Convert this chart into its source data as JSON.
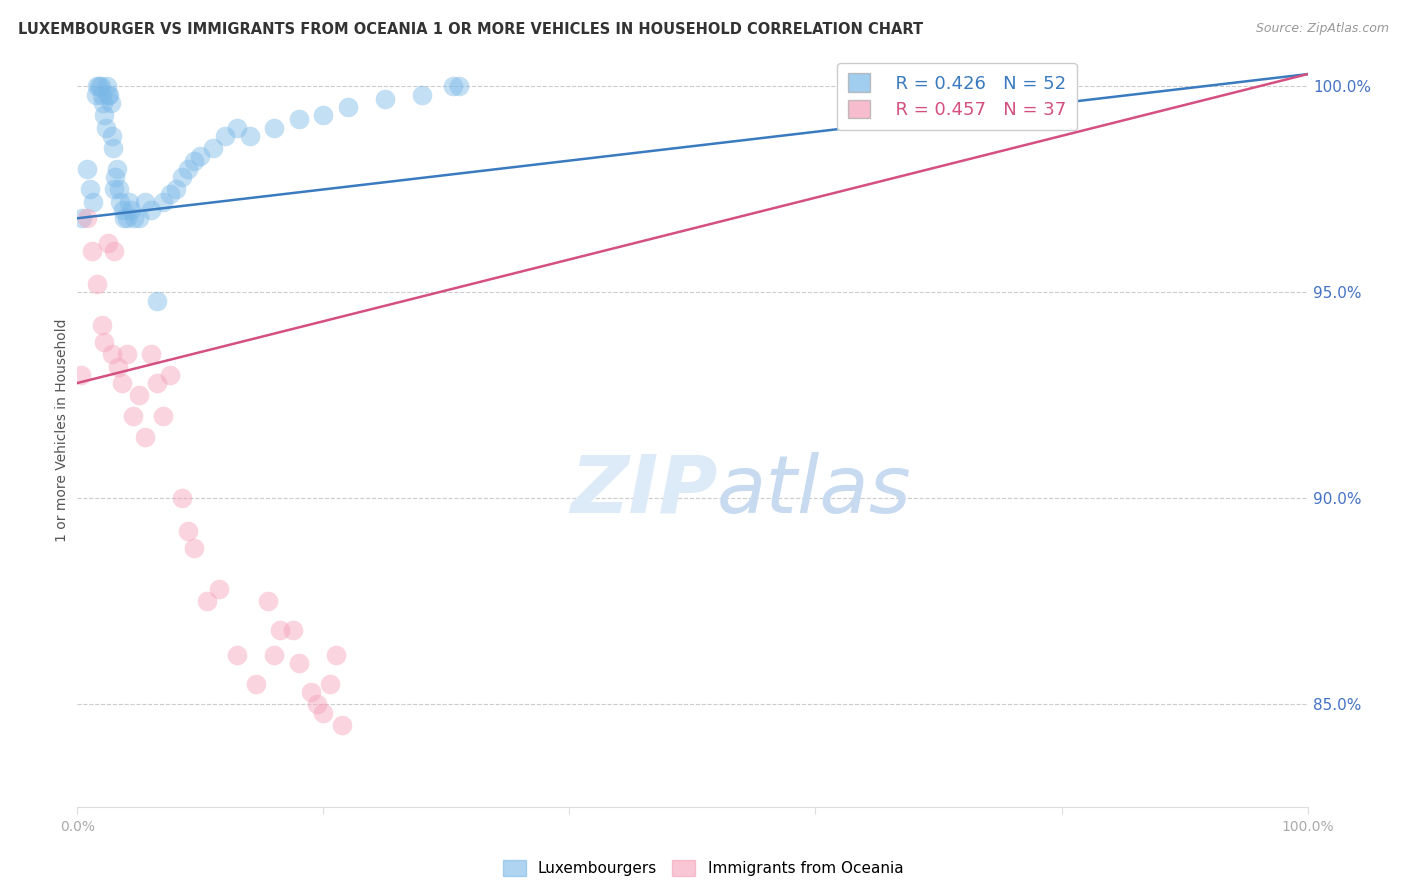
{
  "title": "LUXEMBOURGER VS IMMIGRANTS FROM OCEANIA 1 OR MORE VEHICLES IN HOUSEHOLD CORRELATION CHART",
  "source": "Source: ZipAtlas.com",
  "ylabel": "1 or more Vehicles in Household",
  "legend_blue_r": "R = 0.426",
  "legend_blue_n": "N = 52",
  "legend_pink_r": "R = 0.457",
  "legend_pink_n": "N = 37",
  "blue_color": "#7ab8e8",
  "pink_color": "#f4a0b8",
  "blue_line_color": "#3a7abf",
  "pink_line_color": "#d45080",
  "ytick_color": "#4472C4",
  "xtick_color": "#aaaaaa",
  "background_color": "#ffffff",
  "grid_color": "#cccccc",
  "xlim": [
    0.0,
    1.0
  ],
  "ylim": [
    0.825,
    1.008
  ],
  "yticks": [
    0.85,
    0.9,
    0.95,
    1.0
  ],
  "ytick_labels": [
    "85.0%",
    "90.0%",
    "95.0%",
    "100.0%"
  ],
  "blue_scatter_x": [
    0.004,
    0.008,
    0.01,
    0.013,
    0.015,
    0.016,
    0.018,
    0.019,
    0.02,
    0.021,
    0.022,
    0.023,
    0.024,
    0.025,
    0.026,
    0.027,
    0.028,
    0.029,
    0.03,
    0.031,
    0.032,
    0.034,
    0.035,
    0.037,
    0.038,
    0.04,
    0.042,
    0.044,
    0.046,
    0.05,
    0.055,
    0.06,
    0.065,
    0.07,
    0.075,
    0.08,
    0.085,
    0.09,
    0.095,
    0.1,
    0.11,
    0.12,
    0.13,
    0.14,
    0.16,
    0.18,
    0.2,
    0.22,
    0.25,
    0.28,
    0.305,
    0.31
  ],
  "blue_scatter_y": [
    0.968,
    0.98,
    0.975,
    0.972,
    0.998,
    1.0,
    1.0,
    1.0,
    0.998,
    0.996,
    0.993,
    0.99,
    1.0,
    0.998,
    0.998,
    0.996,
    0.988,
    0.985,
    0.975,
    0.978,
    0.98,
    0.975,
    0.972,
    0.97,
    0.968,
    0.968,
    0.972,
    0.97,
    0.968,
    0.968,
    0.972,
    0.97,
    0.948,
    0.972,
    0.974,
    0.975,
    0.978,
    0.98,
    0.982,
    0.983,
    0.985,
    0.988,
    0.99,
    0.988,
    0.99,
    0.992,
    0.993,
    0.995,
    0.997,
    0.998,
    1.0,
    1.0
  ],
  "pink_scatter_x": [
    0.003,
    0.008,
    0.012,
    0.016,
    0.02,
    0.022,
    0.025,
    0.028,
    0.03,
    0.033,
    0.036,
    0.04,
    0.045,
    0.05,
    0.055,
    0.06,
    0.065,
    0.07,
    0.075,
    0.085,
    0.09,
    0.095,
    0.105,
    0.115,
    0.13,
    0.145,
    0.155,
    0.16,
    0.165,
    0.175,
    0.18,
    0.19,
    0.195,
    0.2,
    0.205,
    0.21,
    0.215
  ],
  "pink_scatter_y": [
    0.93,
    0.968,
    0.96,
    0.952,
    0.942,
    0.938,
    0.962,
    0.935,
    0.96,
    0.932,
    0.928,
    0.935,
    0.92,
    0.925,
    0.915,
    0.935,
    0.928,
    0.92,
    0.93,
    0.9,
    0.892,
    0.888,
    0.875,
    0.878,
    0.862,
    0.855,
    0.875,
    0.862,
    0.868,
    0.868,
    0.86,
    0.853,
    0.85,
    0.848,
    0.855,
    0.862,
    0.845
  ],
  "blue_line_x0": 0.0,
  "blue_line_x1": 1.0,
  "blue_line_y0": 0.968,
  "blue_line_y1": 1.003,
  "pink_line_x0": 0.0,
  "pink_line_x1": 1.0,
  "pink_line_y0": 0.928,
  "pink_line_y1": 1.003
}
